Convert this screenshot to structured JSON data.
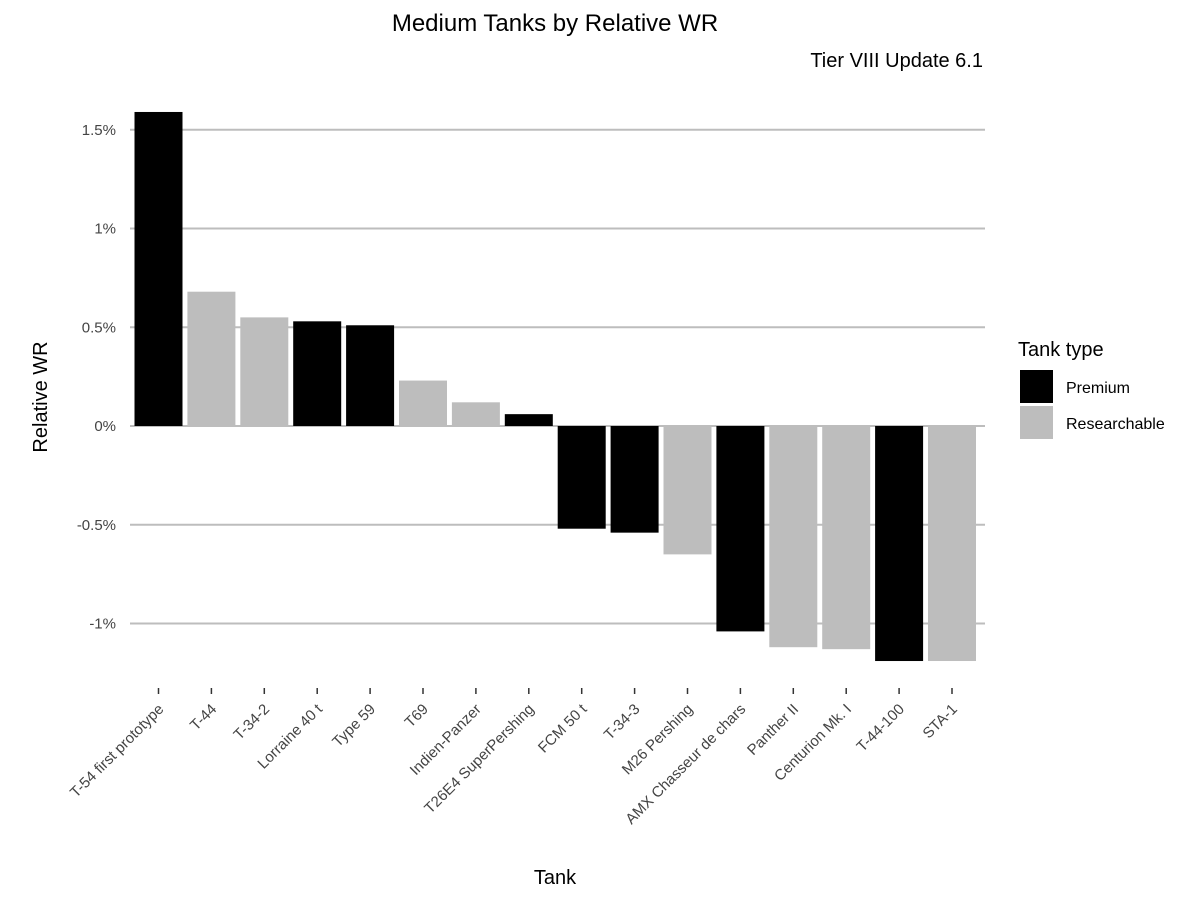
{
  "chart_data": {
    "type": "bar",
    "title": "Medium Tanks by Relative WR",
    "subtitle": "Tier VIII Update 6.1",
    "xlabel": "Tank",
    "ylabel": "Relative WR",
    "ylim": [
      -1.25,
      1.62
    ],
    "y_ticks": [
      {
        "value": 1.5,
        "label": "1.5%"
      },
      {
        "value": 1.0,
        "label": "1%"
      },
      {
        "value": 0.5,
        "label": "0.5%"
      },
      {
        "value": 0.0,
        "label": "0%"
      },
      {
        "value": -0.5,
        "label": "-0.5%"
      },
      {
        "value": -1.0,
        "label": "-1%"
      }
    ],
    "grid": true,
    "legend": {
      "title": "Tank type",
      "placement": "right",
      "entries": [
        {
          "label": "Premium",
          "color": "#000000"
        },
        {
          "label": "Researchable",
          "color": "#bdbdbd"
        }
      ]
    },
    "categories": [
      "T-54 first prototype",
      "T-44",
      "T-34-2",
      "Lorraine 40 t",
      "Type 59",
      "T69",
      "Indien-Panzer",
      "T26E4 SuperPershing",
      "FCM 50 t",
      "T-34-3",
      "M26 Pershing",
      "AMX Chasseur de chars",
      "Panther II",
      "Centurion Mk. I",
      "T-44-100",
      "STA-1"
    ],
    "values": [
      1.59,
      0.68,
      0.55,
      0.53,
      0.51,
      0.23,
      0.12,
      0.06,
      -0.52,
      -0.54,
      -0.65,
      -1.04,
      -1.12,
      -1.13,
      -1.19,
      -1.19
    ],
    "types": [
      "Premium",
      "Researchable",
      "Researchable",
      "Premium",
      "Premium",
      "Researchable",
      "Researchable",
      "Premium",
      "Premium",
      "Premium",
      "Researchable",
      "Premium",
      "Researchable",
      "Researchable",
      "Premium",
      "Researchable"
    ]
  }
}
